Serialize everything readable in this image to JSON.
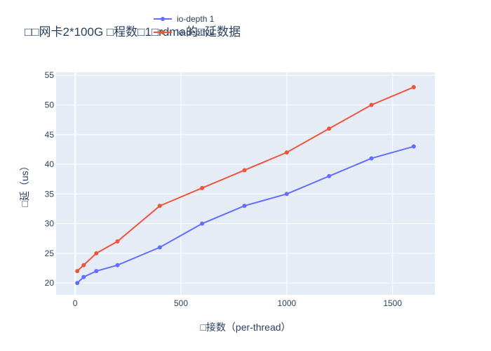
{
  "chart_data": {
    "type": "line",
    "title": "□□网卡2*100G □程数□1□rdma的□延数据",
    "xlabel": "□接数（per-thread）",
    "ylabel": "□延（us）",
    "xlim": [
      -90,
      1700
    ],
    "ylim": [
      18,
      55.5
    ],
    "x_ticks": [
      0,
      500,
      1000,
      1500
    ],
    "y_ticks": [
      20,
      25,
      30,
      35,
      40,
      45,
      50,
      55
    ],
    "grid": true,
    "legend_placement": "top-center",
    "x": [
      10,
      40,
      100,
      200,
      400,
      600,
      800,
      1000,
      1200,
      1400,
      1600
    ],
    "series": [
      {
        "name": "io-depth 1",
        "color": "#636efa",
        "values": [
          20,
          21,
          22,
          23,
          26,
          30,
          33,
          35,
          38,
          41,
          43
        ]
      },
      {
        "name": "io-depth 2",
        "color": "#ef553b",
        "values": [
          22,
          23,
          25,
          27,
          33,
          36,
          39,
          42,
          46,
          50,
          53
        ]
      }
    ]
  }
}
